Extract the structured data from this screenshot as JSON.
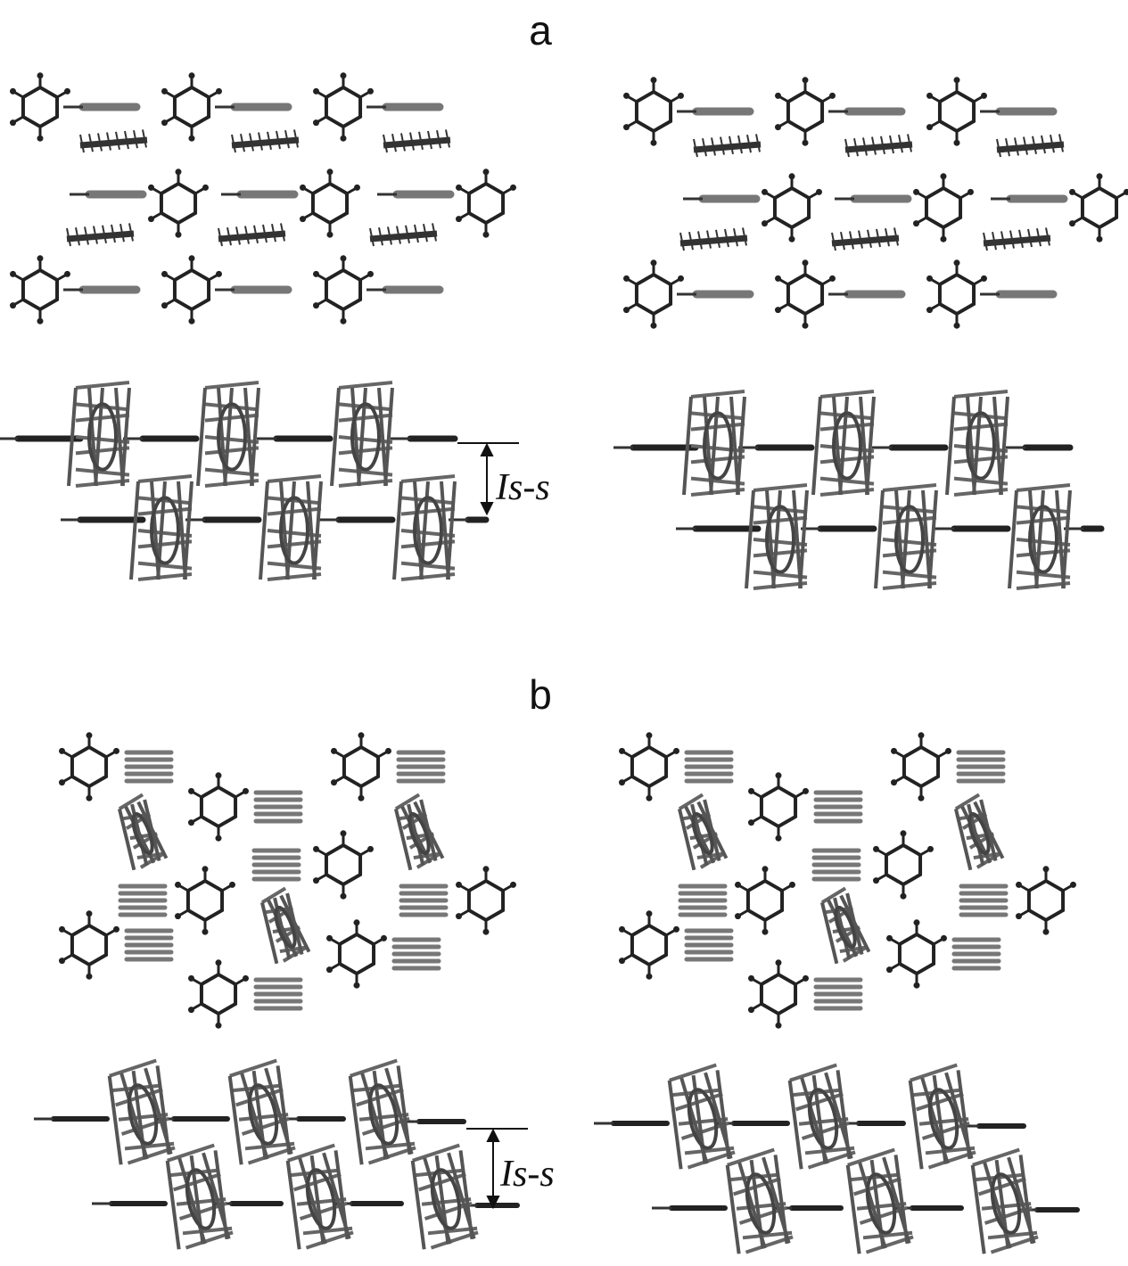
{
  "panels": [
    {
      "label": "a",
      "annotation": "Is-s"
    },
    {
      "label": "b",
      "annotation": "Is-s"
    }
  ]
}
